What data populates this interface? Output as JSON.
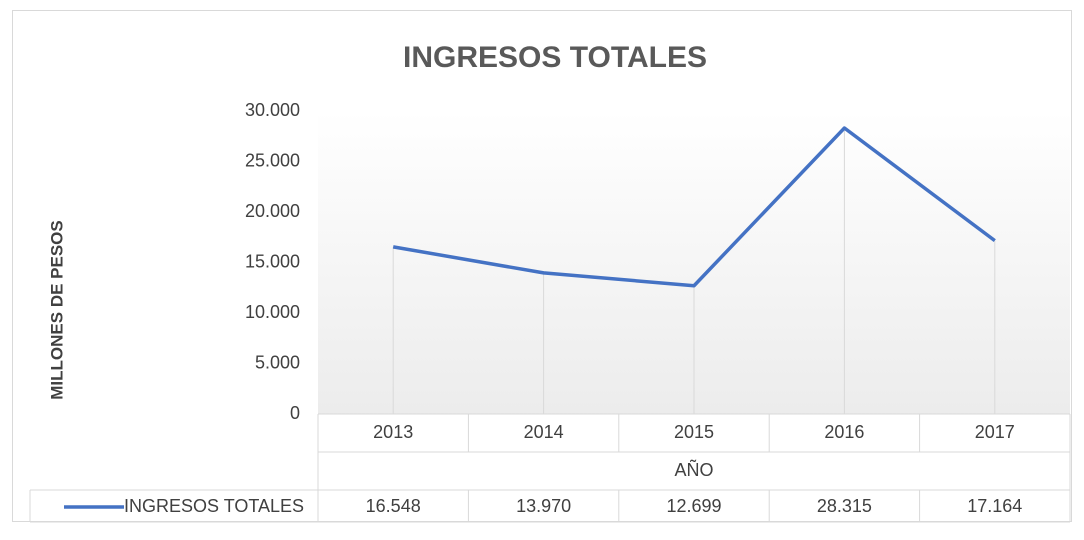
{
  "chart_data": {
    "type": "line",
    "title": "INGRESOS TOTALES",
    "y_label": "MILLONES DE PESOS",
    "x_label": "AÑO",
    "categories": [
      "2013",
      "2014",
      "2015",
      "2016",
      "2017"
    ],
    "series": [
      {
        "name": "INGRESOS TOTALES",
        "color": "#4472c4",
        "values": [
          16548,
          13970,
          12699,
          28315,
          17164
        ],
        "value_labels": [
          "16.548",
          "13.970",
          "12.699",
          "28.315",
          "17.164"
        ]
      }
    ],
    "ylim": [
      0,
      30000
    ],
    "yticks": [
      0,
      {
        "value": 5000,
        "label": "5.000"
      },
      {
        "value": 10000,
        "label": "10.000"
      },
      {
        "value": 15000,
        "label": "15.000"
      },
      {
        "value": 20000,
        "label": "20.000"
      },
      {
        "value": 25000,
        "label": "25.000"
      },
      {
        "value": 30000,
        "label": "30.000"
      }
    ]
  }
}
